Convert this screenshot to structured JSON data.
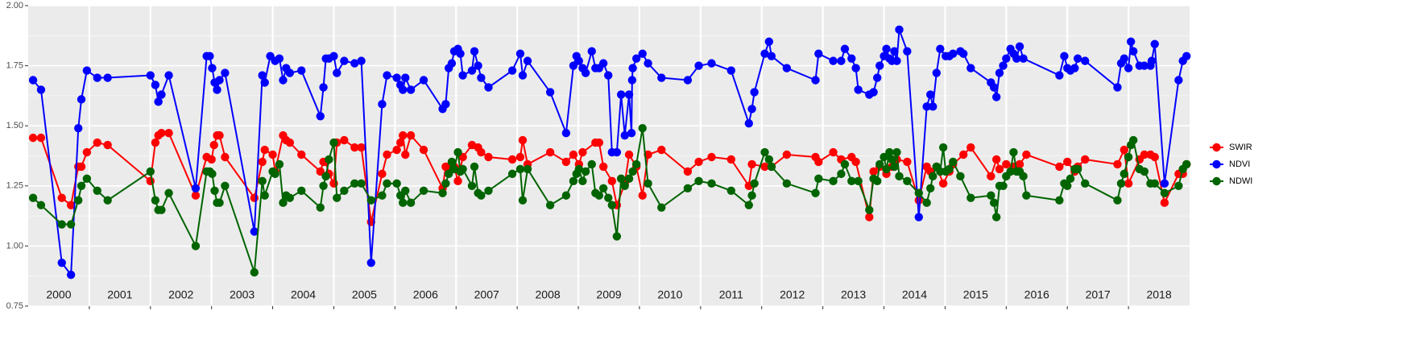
{
  "chart_data": {
    "type": "line",
    "xlim": [
      2000,
      2019
    ],
    "ylim": [
      0.75,
      2.0
    ],
    "yticks": [
      {
        "value": 0.75,
        "label": "0.75"
      },
      {
        "value": 1,
        "label": "1.00"
      },
      1.25,
      {
        "value": 1.5,
        "label": "1.50"
      },
      1.75,
      {
        "value": 2,
        "label": "2.00"
      }
    ],
    "minor_yticks": [
      0.875,
      1.125,
      1.375,
      1.625,
      1.875
    ],
    "year_boundaries": [
      2001,
      2002,
      2003,
      2004,
      2005,
      2006,
      2007,
      2008,
      2009,
      2010,
      2011,
      2012,
      2013,
      2014,
      2015,
      2016,
      2017,
      2018
    ],
    "year_labels": [
      {
        "value": 2000.5,
        "label": "2000"
      },
      {
        "value": 2001.5,
        "label": "2001"
      },
      {
        "value": 2002.5,
        "label": "2002"
      },
      {
        "value": 2003.5,
        "label": "2003"
      },
      {
        "value": 2004.5,
        "label": "2004"
      },
      {
        "value": 2005.5,
        "label": "2005"
      },
      {
        "value": 2006.5,
        "label": "2006"
      },
      {
        "value": 2007.5,
        "label": "2007"
      },
      {
        "value": 2008.5,
        "label": "2008"
      },
      {
        "value": 2009.5,
        "label": "2009"
      },
      {
        "value": 2010.5,
        "label": "2010"
      },
      {
        "value": 2011.5,
        "label": "2011"
      },
      {
        "value": 2012.5,
        "label": "2012"
      },
      {
        "value": 2013.5,
        "label": "2013"
      },
      {
        "value": 2014.5,
        "label": "2014"
      },
      {
        "value": 2015.5,
        "label": "2015"
      },
      {
        "value": 2016.5,
        "label": "2016"
      },
      {
        "value": 2017.5,
        "label": "2017"
      },
      {
        "value": 2018.5,
        "label": "2018"
      }
    ],
    "grid": true,
    "legend": "right",
    "series": [
      {
        "name": "SWIR",
        "color": "#ff0000",
        "x": [
          2000.08,
          2000.21,
          2000.55,
          2000.7,
          2000.82,
          2000.87,
          2000.96,
          2001.13,
          2001.3,
          2002.0,
          2002.08,
          2002.13,
          2002.18,
          2002.3,
          2002.74,
          2002.92,
          2003.0,
          2003.04,
          2003.09,
          2003.13,
          2003.22,
          2003.7,
          2003.83,
          2003.87,
          2004.0,
          2004.04,
          2004.17,
          2004.22,
          2004.28,
          2004.47,
          2004.78,
          2004.83,
          2004.87,
          2004.92,
          2005.0,
          2005.05,
          2005.17,
          2005.34,
          2005.45,
          2005.61,
          2005.79,
          2005.87,
          2006.03,
          2006.09,
          2006.13,
          2006.17,
          2006.26,
          2006.47,
          2006.78,
          2006.83,
          2006.88,
          2006.97,
          2007.03,
          2007.07,
          2007.11,
          2007.26,
          2007.36,
          2007.41,
          2007.53,
          2007.92,
          2008.05,
          2008.09,
          2008.17,
          2008.54,
          2008.8,
          2008.92,
          2009.01,
          2009.07,
          2009.28,
          2009.34,
          2009.41,
          2009.55,
          2009.63,
          2009.76,
          2009.83,
          2009.95,
          2010.05,
          2010.14,
          2010.36,
          2010.79,
          2010.97,
          2011.18,
          2011.5,
          2011.79,
          2011.84,
          2012.05,
          2012.16,
          2012.41,
          2012.88,
          2012.93,
          2013.17,
          2013.3,
          2013.47,
          2013.54,
          2013.76,
          2013.83,
          2013.93,
          2014.04,
          2014.13,
          2014.21,
          2014.38,
          2014.57,
          2014.7,
          2014.76,
          2014.86,
          2014.97,
          2015.07,
          2015.13,
          2015.3,
          2015.42,
          2015.75,
          2015.84,
          2015.89,
          2016.0,
          2016.12,
          2016.22,
          2016.33,
          2016.87,
          2017.0,
          2017.12,
          2017.17,
          2017.29,
          2017.82,
          2017.93,
          2018.0,
          2018.18,
          2018.26,
          2018.36,
          2018.43,
          2018.59,
          2018.82,
          2018.89,
          2018.95
        ],
        "values": [
          1.45,
          1.45,
          1.2,
          1.17,
          1.33,
          1.33,
          1.39,
          1.43,
          1.42,
          1.27,
          1.43,
          1.46,
          1.47,
          1.47,
          1.21,
          1.37,
          1.36,
          1.42,
          1.46,
          1.46,
          1.37,
          1.2,
          1.35,
          1.4,
          1.38,
          1.31,
          1.46,
          1.44,
          1.43,
          1.38,
          1.31,
          1.35,
          1.35,
          1.3,
          1.26,
          1.43,
          1.44,
          1.41,
          1.41,
          1.1,
          1.3,
          1.38,
          1.4,
          1.43,
          1.46,
          1.38,
          1.46,
          1.4,
          1.24,
          1.33,
          1.33,
          1.33,
          1.27,
          1.32,
          1.37,
          1.42,
          1.41,
          1.39,
          1.37,
          1.36,
          1.37,
          1.44,
          1.34,
          1.39,
          1.35,
          1.38,
          1.34,
          1.39,
          1.43,
          1.43,
          1.33,
          1.27,
          1.17,
          1.26,
          1.38,
          1.33,
          1.21,
          1.38,
          1.4,
          1.31,
          1.35,
          1.37,
          1.36,
          1.25,
          1.34,
          1.33,
          1.33,
          1.38,
          1.37,
          1.35,
          1.39,
          1.36,
          1.37,
          1.35,
          1.12,
          1.31,
          1.33,
          1.3,
          1.33,
          1.36,
          1.35,
          1.19,
          1.33,
          1.31,
          1.33,
          1.26,
          1.31,
          1.34,
          1.38,
          1.41,
          1.29,
          1.36,
          1.32,
          1.34,
          1.33,
          1.34,
          1.38,
          1.33,
          1.35,
          1.31,
          1.33,
          1.36,
          1.34,
          1.4,
          1.26,
          1.36,
          1.38,
          1.38,
          1.37,
          1.18,
          1.3,
          1.3,
          1.34
        ]
      },
      {
        "name": "NDVI",
        "color": "#0000ff",
        "x": [
          2000.08,
          2000.21,
          2000.55,
          2000.7,
          2000.82,
          2000.87,
          2000.96,
          2001.13,
          2001.3,
          2002.0,
          2002.08,
          2002.13,
          2002.18,
          2002.3,
          2002.74,
          2002.92,
          2002.97,
          2003.01,
          2003.05,
          2003.09,
          2003.13,
          2003.22,
          2003.7,
          2003.83,
          2003.87,
          2003.96,
          2004.04,
          2004.11,
          2004.17,
          2004.22,
          2004.28,
          2004.47,
          2004.78,
          2004.83,
          2004.87,
          2004.92,
          2005.0,
          2005.05,
          2005.17,
          2005.34,
          2005.45,
          2005.61,
          2005.79,
          2005.87,
          2006.03,
          2006.09,
          2006.13,
          2006.17,
          2006.26,
          2006.47,
          2006.78,
          2006.83,
          2006.88,
          2006.93,
          2006.97,
          2007.03,
          2007.07,
          2007.11,
          2007.26,
          2007.3,
          2007.36,
          2007.41,
          2007.53,
          2007.92,
          2008.05,
          2008.09,
          2008.17,
          2008.54,
          2008.8,
          2008.92,
          2008.97,
          2009.01,
          2009.07,
          2009.12,
          2009.22,
          2009.28,
          2009.34,
          2009.41,
          2009.49,
          2009.55,
          2009.63,
          2009.7,
          2009.76,
          2009.83,
          2009.87,
          2009.88,
          2009.89,
          2009.95,
          2010.05,
          2010.14,
          2010.36,
          2010.79,
          2010.97,
          2011.18,
          2011.5,
          2011.79,
          2011.84,
          2011.88,
          2012.05,
          2012.12,
          2012.16,
          2012.41,
          2012.88,
          2012.93,
          2013.17,
          2013.3,
          2013.36,
          2013.47,
          2013.54,
          2013.58,
          2013.76,
          2013.83,
          2013.89,
          2013.93,
          2014.0,
          2014.04,
          2014.09,
          2014.13,
          2014.17,
          2014.21,
          2014.25,
          2014.38,
          2014.57,
          2014.7,
          2014.76,
          2014.8,
          2014.86,
          2014.92,
          2015.01,
          2015.07,
          2015.13,
          2015.25,
          2015.3,
          2015.42,
          2015.75,
          2015.8,
          2015.84,
          2015.89,
          2015.95,
          2016.0,
          2016.07,
          2016.12,
          2016.17,
          2016.22,
          2016.28,
          2016.87,
          2016.95,
          2017.0,
          2017.05,
          2017.12,
          2017.17,
          2017.29,
          2017.82,
          2017.88,
          2017.93,
          2018.0,
          2018.04,
          2018.08,
          2018.18,
          2018.26,
          2018.36,
          2018.38,
          2018.43,
          2018.59,
          2018.82,
          2018.89,
          2018.95
        ],
        "values": [
          1.69,
          1.65,
          0.93,
          0.88,
          1.49,
          1.61,
          1.73,
          1.7,
          1.7,
          1.71,
          1.67,
          1.6,
          1.63,
          1.71,
          1.24,
          1.79,
          1.79,
          1.74,
          1.68,
          1.65,
          1.69,
          1.72,
          1.06,
          1.71,
          1.68,
          1.79,
          1.77,
          1.78,
          1.69,
          1.74,
          1.72,
          1.73,
          1.54,
          1.66,
          1.78,
          1.78,
          1.79,
          1.72,
          1.77,
          1.76,
          1.77,
          0.93,
          1.59,
          1.71,
          1.7,
          1.67,
          1.65,
          1.7,
          1.65,
          1.69,
          1.57,
          1.59,
          1.74,
          1.76,
          1.81,
          1.82,
          1.8,
          1.71,
          1.73,
          1.81,
          1.75,
          1.7,
          1.66,
          1.73,
          1.8,
          1.71,
          1.77,
          1.64,
          1.47,
          1.75,
          1.79,
          1.77,
          1.74,
          1.72,
          1.81,
          1.74,
          1.74,
          1.76,
          1.71,
          1.39,
          1.39,
          1.63,
          1.46,
          1.63,
          1.47,
          1.69,
          1.74,
          1.78,
          1.8,
          1.76,
          1.7,
          1.69,
          1.75,
          1.76,
          1.73,
          1.51,
          1.57,
          1.64,
          1.8,
          1.85,
          1.79,
          1.74,
          1.69,
          1.8,
          1.77,
          1.77,
          1.82,
          1.78,
          1.74,
          1.65,
          1.63,
          1.64,
          1.7,
          1.75,
          1.79,
          1.82,
          1.78,
          1.77,
          1.81,
          1.77,
          1.9,
          1.81,
          1.12,
          1.58,
          1.63,
          1.58,
          1.72,
          1.82,
          1.79,
          1.79,
          1.8,
          1.81,
          1.8,
          1.74,
          1.68,
          1.66,
          1.62,
          1.72,
          1.75,
          1.78,
          1.82,
          1.8,
          1.78,
          1.83,
          1.78,
          1.71,
          1.79,
          1.74,
          1.73,
          1.74,
          1.78,
          1.77,
          1.66,
          1.76,
          1.78,
          1.74,
          1.85,
          1.81,
          1.75,
          1.75,
          1.75,
          1.77,
          1.84,
          1.26,
          1.69,
          1.77,
          1.79
        ]
      },
      {
        "name": "NDWI",
        "color": "#006400",
        "x": [
          2000.08,
          2000.21,
          2000.55,
          2000.7,
          2000.82,
          2000.87,
          2000.96,
          2001.13,
          2001.3,
          2002.0,
          2002.08,
          2002.13,
          2002.18,
          2002.3,
          2002.74,
          2002.92,
          2002.97,
          2003.01,
          2003.05,
          2003.09,
          2003.13,
          2003.22,
          2003.7,
          2003.83,
          2003.87,
          2004.0,
          2004.04,
          2004.11,
          2004.17,
          2004.22,
          2004.28,
          2004.47,
          2004.78,
          2004.83,
          2004.87,
          2004.92,
          2005.0,
          2005.05,
          2005.17,
          2005.34,
          2005.45,
          2005.61,
          2005.79,
          2005.87,
          2006.03,
          2006.09,
          2006.13,
          2006.17,
          2006.26,
          2006.47,
          2006.78,
          2006.83,
          2006.88,
          2006.93,
          2006.97,
          2007.03,
          2007.07,
          2007.11,
          2007.26,
          2007.3,
          2007.36,
          2007.41,
          2007.53,
          2007.92,
          2008.05,
          2008.09,
          2008.17,
          2008.54,
          2008.8,
          2008.92,
          2008.97,
          2009.01,
          2009.07,
          2009.12,
          2009.22,
          2009.28,
          2009.34,
          2009.41,
          2009.49,
          2009.55,
          2009.63,
          2009.7,
          2009.76,
          2009.83,
          2009.89,
          2009.95,
          2010.05,
          2010.14,
          2010.36,
          2010.79,
          2010.97,
          2011.18,
          2011.5,
          2011.79,
          2011.84,
          2011.88,
          2012.05,
          2012.12,
          2012.16,
          2012.41,
          2012.88,
          2012.93,
          2013.17,
          2013.3,
          2013.36,
          2013.47,
          2013.58,
          2013.76,
          2013.83,
          2013.89,
          2013.93,
          2014.0,
          2014.04,
          2014.09,
          2014.13,
          2014.17,
          2014.21,
          2014.25,
          2014.38,
          2014.57,
          2014.7,
          2014.76,
          2014.8,
          2014.86,
          2014.92,
          2014.97,
          2015.01,
          2015.07,
          2015.13,
          2015.25,
          2015.42,
          2015.75,
          2015.8,
          2015.84,
          2015.89,
          2015.95,
          2016.0,
          2016.07,
          2016.12,
          2016.17,
          2016.22,
          2016.28,
          2016.33,
          2016.87,
          2016.95,
          2017.0,
          2017.05,
          2017.12,
          2017.17,
          2017.29,
          2017.82,
          2017.88,
          2017.93,
          2018.0,
          2018.04,
          2018.08,
          2018.18,
          2018.26,
          2018.36,
          2018.43,
          2018.59,
          2018.82,
          2018.89,
          2018.95
        ],
        "values": [
          1.2,
          1.17,
          1.09,
          1.09,
          1.19,
          1.25,
          1.28,
          1.23,
          1.19,
          1.31,
          1.19,
          1.15,
          1.15,
          1.22,
          1.0,
          1.31,
          1.31,
          1.3,
          1.23,
          1.18,
          1.18,
          1.25,
          0.89,
          1.27,
          1.21,
          1.31,
          1.3,
          1.34,
          1.18,
          1.21,
          1.2,
          1.23,
          1.16,
          1.25,
          1.29,
          1.36,
          1.43,
          1.2,
          1.23,
          1.26,
          1.26,
          1.19,
          1.21,
          1.26,
          1.26,
          1.21,
          1.18,
          1.23,
          1.18,
          1.23,
          1.22,
          1.26,
          1.3,
          1.35,
          1.32,
          1.39,
          1.31,
          1.32,
          1.25,
          1.33,
          1.22,
          1.21,
          1.23,
          1.3,
          1.32,
          1.19,
          1.32,
          1.17,
          1.21,
          1.27,
          1.3,
          1.32,
          1.27,
          1.31,
          1.34,
          1.22,
          1.21,
          1.24,
          1.2,
          1.17,
          1.04,
          1.28,
          1.25,
          1.28,
          1.31,
          1.34,
          1.49,
          1.26,
          1.16,
          1.24,
          1.27,
          1.26,
          1.23,
          1.17,
          1.21,
          1.26,
          1.39,
          1.36,
          1.33,
          1.26,
          1.22,
          1.28,
          1.27,
          1.3,
          1.34,
          1.27,
          1.27,
          1.15,
          1.28,
          1.27,
          1.34,
          1.37,
          1.32,
          1.39,
          1.36,
          1.33,
          1.39,
          1.29,
          1.27,
          1.22,
          1.18,
          1.24,
          1.29,
          1.33,
          1.31,
          1.41,
          1.31,
          1.32,
          1.35,
          1.29,
          1.2,
          1.21,
          1.18,
          1.12,
          1.25,
          1.25,
          1.29,
          1.31,
          1.39,
          1.31,
          1.31,
          1.29,
          1.21,
          1.19,
          1.26,
          1.25,
          1.28,
          1.32,
          1.32,
          1.26,
          1.19,
          1.26,
          1.3,
          1.37,
          1.42,
          1.44,
          1.32,
          1.31,
          1.26,
          1.26,
          1.22,
          1.25,
          1.32,
          1.34
        ]
      }
    ]
  }
}
